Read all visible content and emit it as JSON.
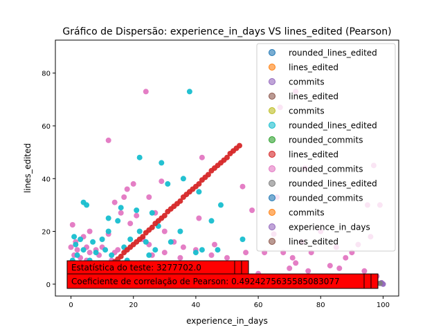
{
  "chart_data": {
    "type": "scatter",
    "title": "Gráfico de Dispersão: experience_in_days VS lines_edited (Pearson)",
    "xlabel": "experience_in_days",
    "ylabel": "lines_edited",
    "xlim": [
      -5,
      105
    ],
    "ylim": [
      -4.5,
      92.5
    ],
    "xticks": [
      0,
      20,
      40,
      60,
      80,
      100
    ],
    "yticks": [
      0,
      20,
      40,
      60,
      80
    ],
    "grid": false,
    "legend_position": "top-right",
    "legend": [
      {
        "label": "rounded_lines_edited",
        "color": "#1f77b4"
      },
      {
        "label": "lines_edited",
        "color": "#ff7f0e"
      },
      {
        "label": "commits",
        "color": "#9467bd"
      },
      {
        "label": "lines_edited",
        "color": "#8c564b"
      },
      {
        "label": "commits",
        "color": "#bcbd22"
      },
      {
        "label": "rounded_lines_edited",
        "color": "#17becf"
      },
      {
        "label": "rounded_commits",
        "color": "#2ca02c"
      },
      {
        "label": "lines_edited",
        "color": "#d62728"
      },
      {
        "label": "rounded_commits",
        "color": "#e377c2"
      },
      {
        "label": "rounded_lines_edited",
        "color": "#7f7f7f"
      },
      {
        "label": "rounded_commits",
        "color": "#1f77b4"
      },
      {
        "label": "commits",
        "color": "#ff7f0e"
      },
      {
        "label": "experience_in_days",
        "color": "#9467bd"
      },
      {
        "label": "lines_edited",
        "color": "#8c564b"
      }
    ],
    "series": [
      {
        "color": "#e377c2",
        "points": [
          [
            0,
            14
          ],
          [
            0.5,
            22.5
          ],
          [
            1,
            11
          ],
          [
            1.5,
            16
          ],
          [
            2,
            7
          ],
          [
            2,
            13
          ],
          [
            3,
            10
          ],
          [
            3.5,
            4
          ],
          [
            4,
            18
          ],
          [
            5,
            9
          ],
          [
            5,
            14
          ],
          [
            6,
            12
          ],
          [
            6,
            20
          ],
          [
            7,
            2
          ],
          [
            8,
            7
          ],
          [
            8,
            13
          ],
          [
            9,
            11
          ],
          [
            10,
            14
          ],
          [
            10,
            3
          ],
          [
            11,
            6
          ],
          [
            12,
            54.5
          ],
          [
            12,
            19
          ],
          [
            13,
            9
          ],
          [
            14,
            31
          ],
          [
            14,
            12
          ],
          [
            15,
            13
          ],
          [
            16,
            27
          ],
          [
            17,
            33
          ],
          [
            18,
            36
          ],
          [
            19,
            23
          ],
          [
            20,
            38
          ],
          [
            20,
            3
          ],
          [
            21,
            26
          ],
          [
            22,
            8
          ],
          [
            23,
            17
          ],
          [
            24,
            73
          ],
          [
            25,
            15
          ],
          [
            25,
            33
          ],
          [
            26,
            11
          ],
          [
            27,
            27
          ],
          [
            28,
            6
          ],
          [
            29,
            39
          ],
          [
            30,
            12
          ],
          [
            30,
            20
          ],
          [
            31,
            2
          ],
          [
            33,
            16
          ],
          [
            35,
            10
          ],
          [
            36,
            14
          ],
          [
            38,
            6
          ],
          [
            38,
            1
          ],
          [
            40,
            13
          ],
          [
            41,
            25
          ],
          [
            42,
            48
          ],
          [
            43,
            5
          ],
          [
            45,
            11
          ],
          [
            46,
            15
          ],
          [
            48,
            3
          ],
          [
            50,
            10
          ],
          [
            52,
            5
          ],
          [
            55,
            37
          ],
          [
            56,
            12
          ],
          [
            58,
            28
          ],
          [
            60,
            4
          ],
          [
            61,
            1
          ],
          [
            62,
            12
          ],
          [
            64,
            2
          ],
          [
            65,
            19
          ],
          [
            66,
            33
          ],
          [
            67,
            67
          ],
          [
            68,
            12
          ],
          [
            70,
            6
          ],
          [
            71,
            10
          ],
          [
            72,
            8
          ],
          [
            72,
            73
          ],
          [
            74,
            16
          ],
          [
            75,
            44
          ],
          [
            76,
            5
          ],
          [
            77,
            12
          ],
          [
            78,
            1
          ],
          [
            80,
            20
          ],
          [
            82,
            3
          ],
          [
            83,
            7
          ],
          [
            85,
            14
          ],
          [
            86,
            6
          ],
          [
            88,
            10
          ],
          [
            89,
            2
          ],
          [
            90,
            12
          ],
          [
            92,
            15
          ],
          [
            94,
            5
          ],
          [
            95,
            30
          ],
          [
            96,
            18
          ],
          [
            97,
            45
          ],
          [
            98,
            3
          ],
          [
            99,
            30
          ]
        ]
      },
      {
        "color": "#17becf",
        "points": [
          [
            0,
            5
          ],
          [
            0.5,
            9
          ],
          [
            1,
            18
          ],
          [
            1.5,
            15
          ],
          [
            2,
            1
          ],
          [
            2,
            11
          ],
          [
            3,
            7
          ],
          [
            3,
            17
          ],
          [
            4,
            31
          ],
          [
            4,
            13
          ],
          [
            5,
            30
          ],
          [
            5,
            2
          ],
          [
            6,
            9
          ],
          [
            7,
            16
          ],
          [
            7,
            5
          ],
          [
            8,
            12
          ],
          [
            9,
            8
          ],
          [
            10,
            4
          ],
          [
            10,
            17
          ],
          [
            11,
            13
          ],
          [
            12,
            20
          ],
          [
            12,
            25
          ],
          [
            13,
            11
          ],
          [
            14,
            2
          ],
          [
            15,
            24
          ],
          [
            16,
            29
          ],
          [
            17,
            14
          ],
          [
            18,
            9
          ],
          [
            19,
            17
          ],
          [
            20,
            1
          ],
          [
            21,
            28
          ],
          [
            22,
            48
          ],
          [
            22,
            20
          ],
          [
            23,
            7
          ],
          [
            24,
            16
          ],
          [
            25,
            11
          ],
          [
            26,
            27
          ],
          [
            27,
            13
          ],
          [
            28,
            22
          ],
          [
            29,
            46
          ],
          [
            30,
            2
          ],
          [
            31,
            38
          ],
          [
            32,
            16
          ],
          [
            33,
            6
          ],
          [
            35,
            20
          ],
          [
            36,
            40
          ],
          [
            37,
            0
          ],
          [
            38,
            73
          ],
          [
            40,
            12
          ],
          [
            41,
            35
          ],
          [
            42,
            13
          ],
          [
            43,
            2
          ],
          [
            45,
            24
          ],
          [
            47,
            13
          ],
          [
            48,
            30
          ],
          [
            50,
            0
          ],
          [
            52,
            2
          ],
          [
            55,
            17
          ]
        ]
      },
      {
        "color": "#d62728",
        "points": [
          [
            9,
            3
          ],
          [
            10,
            4
          ],
          [
            11,
            5
          ],
          [
            12,
            6
          ],
          [
            13,
            7
          ],
          [
            14,
            8.5
          ],
          [
            15,
            9.5
          ],
          [
            16,
            10.5
          ],
          [
            17,
            12
          ],
          [
            18,
            13
          ],
          [
            19,
            14
          ],
          [
            20,
            15
          ],
          [
            21,
            16
          ],
          [
            22,
            17
          ],
          [
            23,
            18
          ],
          [
            24,
            19.5
          ],
          [
            25,
            20.5
          ],
          [
            26,
            21.5
          ],
          [
            27,
            23
          ],
          [
            28,
            24
          ],
          [
            29,
            25
          ],
          [
            30,
            26
          ],
          [
            31,
            27.5
          ],
          [
            32,
            28.5
          ],
          [
            33,
            29.5
          ],
          [
            34,
            30.5
          ],
          [
            35,
            31.5
          ],
          [
            36,
            33
          ],
          [
            37,
            34
          ],
          [
            38,
            35
          ],
          [
            39,
            36
          ],
          [
            40,
            37
          ],
          [
            41,
            38
          ],
          [
            42,
            39.5
          ],
          [
            43,
            40.5
          ],
          [
            44,
            41.5
          ],
          [
            45,
            43
          ],
          [
            46,
            44
          ],
          [
            47,
            45
          ],
          [
            48,
            46
          ],
          [
            49,
            47
          ],
          [
            50,
            48
          ],
          [
            51,
            49.5
          ],
          [
            52,
            50.5
          ],
          [
            53,
            51.5
          ],
          [
            54,
            52.5
          ]
        ]
      },
      {
        "color": "#9467bd",
        "points": [
          [
            100,
            0
          ],
          [
            99.5,
            0.5
          ]
        ]
      },
      {
        "color": "#7f7f7f",
        "points": [
          [
            99,
            0.3
          ]
        ]
      }
    ],
    "annotations": [
      "Estatística do teste: 3277702.0",
      "Coeficiente de correlação de Pearson: 0.4924275635585083077"
    ]
  }
}
